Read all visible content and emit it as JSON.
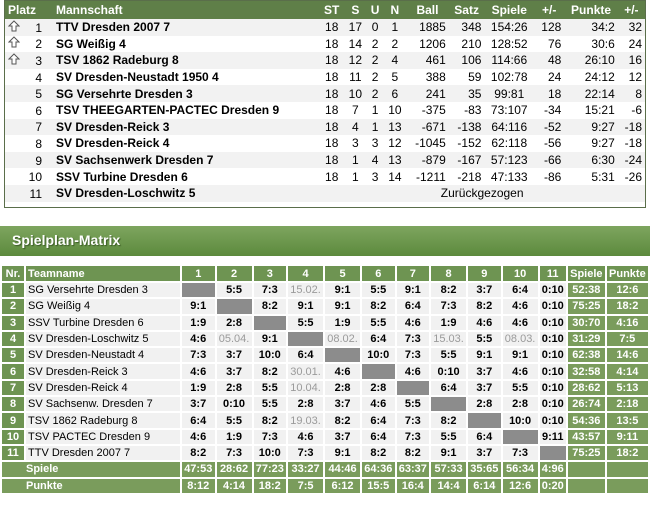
{
  "standings": {
    "headers": [
      "Platz",
      "Mannschaft",
      "ST",
      "S",
      "U",
      "N",
      "Ball",
      "Satz",
      "Spiele",
      "+/-",
      "Punkte",
      "+/-"
    ],
    "rows": [
      {
        "arrow": "up",
        "place": "1",
        "team": "TTV Dresden 2007 7",
        "st": "18",
        "s": "17",
        "u": "0",
        "n": "1",
        "ball": "1885",
        "satz": "348",
        "spiele": "154:26",
        "diff": "128",
        "punkte": "34:2",
        "pdiff": "32"
      },
      {
        "arrow": "up",
        "place": "2",
        "team": "SG Weißig 4",
        "st": "18",
        "s": "14",
        "u": "2",
        "n": "2",
        "ball": "1206",
        "satz": "210",
        "spiele": "128:52",
        "diff": "76",
        "punkte": "30:6",
        "pdiff": "24"
      },
      {
        "arrow": "up",
        "place": "3",
        "team": "TSV 1862 Radeburg 8",
        "st": "18",
        "s": "12",
        "u": "2",
        "n": "4",
        "ball": "461",
        "satz": "106",
        "spiele": "114:66",
        "diff": "48",
        "punkte": "26:10",
        "pdiff": "16"
      },
      {
        "arrow": "",
        "place": "4",
        "team": "SV Dresden-Neustadt 1950 4",
        "st": "18",
        "s": "11",
        "u": "2",
        "n": "5",
        "ball": "388",
        "satz": "59",
        "spiele": "102:78",
        "diff": "24",
        "punkte": "24:12",
        "pdiff": "12"
      },
      {
        "arrow": "",
        "place": "5",
        "team": "SG Versehrte Dresden 3",
        "st": "18",
        "s": "10",
        "u": "2",
        "n": "6",
        "ball": "241",
        "satz": "35",
        "spiele": "99:81",
        "diff": "18",
        "punkte": "22:14",
        "pdiff": "8"
      },
      {
        "arrow": "",
        "place": "6",
        "team": "TSV THEEGARTEN-PACTEC Dresden 9",
        "st": "18",
        "s": "7",
        "u": "1",
        "n": "10",
        "ball": "-375",
        "satz": "-83",
        "spiele": "73:107",
        "diff": "-34",
        "punkte": "15:21",
        "pdiff": "-6"
      },
      {
        "arrow": "",
        "place": "7",
        "team": "SV Dresden-Reick 3",
        "st": "18",
        "s": "4",
        "u": "1",
        "n": "13",
        "ball": "-671",
        "satz": "-138",
        "spiele": "64:116",
        "diff": "-52",
        "punkte": "9:27",
        "pdiff": "-18"
      },
      {
        "arrow": "",
        "place": "8",
        "team": "SV Dresden-Reick 4",
        "st": "18",
        "s": "3",
        "u": "3",
        "n": "12",
        "ball": "-1045",
        "satz": "-152",
        "spiele": "62:118",
        "diff": "-56",
        "punkte": "9:27",
        "pdiff": "-18"
      },
      {
        "arrow": "",
        "place": "9",
        "team": "SV Sachsenwerk Dresden 7",
        "st": "18",
        "s": "1",
        "u": "4",
        "n": "13",
        "ball": "-879",
        "satz": "-167",
        "spiele": "57:123",
        "diff": "-66",
        "punkte": "6:30",
        "pdiff": "-24"
      },
      {
        "arrow": "",
        "place": "10",
        "team": "SSV Turbine Dresden 6",
        "st": "18",
        "s": "1",
        "u": "3",
        "n": "14",
        "ball": "-1211",
        "satz": "-218",
        "spiele": "47:133",
        "diff": "-86",
        "punkte": "5:31",
        "pdiff": "-26"
      }
    ],
    "withdrawn": {
      "place": "11",
      "team": "SV Dresden-Loschwitz 5",
      "text": "Zurückgezogen"
    }
  },
  "matrix": {
    "title": "Spielplan-Matrix",
    "headers": {
      "nr": "Nr.",
      "team": "Teamname",
      "cols": [
        "1",
        "2",
        "3",
        "4",
        "5",
        "6",
        "7",
        "8",
        "9",
        "10",
        "11"
      ],
      "spiele": "Spiele",
      "punkte": "Punkte"
    },
    "rows": [
      {
        "nr": "1",
        "team": "SG Versehrte Dresden 3",
        "cells": [
          "",
          "5:5",
          "7:3",
          "15.02.",
          "9:1",
          "5:5",
          "9:1",
          "8:2",
          "3:7",
          "6:4",
          "0:10"
        ],
        "spiele": "52:38",
        "punkte": "12:6"
      },
      {
        "nr": "2",
        "team": "SG Weißig 4",
        "cells": [
          "9:1",
          "",
          "8:2",
          "9:1",
          "9:1",
          "8:2",
          "6:4",
          "7:3",
          "8:2",
          "4:6",
          "0:10"
        ],
        "spiele": "75:25",
        "punkte": "18:2"
      },
      {
        "nr": "3",
        "team": "SSV Turbine Dresden 6",
        "cells": [
          "1:9",
          "2:8",
          "",
          "5:5",
          "1:9",
          "5:5",
          "4:6",
          "1:9",
          "4:6",
          "4:6",
          "0:10"
        ],
        "spiele": "30:70",
        "punkte": "4:16"
      },
      {
        "nr": "4",
        "team": "SV Dresden-Loschwitz 5",
        "cells": [
          "4:6",
          "05.04.",
          "9:1",
          "",
          "08.02.",
          "6:4",
          "7:3",
          "15.03.",
          "5:5",
          "08.03.",
          "0:10"
        ],
        "spiele": "31:29",
        "punkte": "7:5"
      },
      {
        "nr": "5",
        "team": "SV Dresden-Neustadt 4",
        "cells": [
          "7:3",
          "3:7",
          "10:0",
          "6:4",
          "",
          "10:0",
          "7:3",
          "5:5",
          "9:1",
          "9:1",
          "0:10"
        ],
        "spiele": "62:38",
        "punkte": "14:6"
      },
      {
        "nr": "6",
        "team": "SV Dresden-Reick 3",
        "cells": [
          "4:6",
          "3:7",
          "8:2",
          "30.01.",
          "4:6",
          "",
          "4:6",
          "0:10",
          "3:7",
          "4:6",
          "0:10"
        ],
        "spiele": "32:58",
        "punkte": "4:14"
      },
      {
        "nr": "7",
        "team": "SV Dresden-Reick 4",
        "cells": [
          "1:9",
          "2:8",
          "5:5",
          "10.04.",
          "2:8",
          "2:8",
          "",
          "6:4",
          "3:7",
          "5:5",
          "0:10"
        ],
        "spiele": "28:62",
        "punkte": "5:13"
      },
      {
        "nr": "8",
        "team": "SV Sachsenw. Dresden 7",
        "cells": [
          "3:7",
          "0:10",
          "5:5",
          "2:8",
          "3:7",
          "4:6",
          "5:5",
          "",
          "2:8",
          "2:8",
          "0:10"
        ],
        "spiele": "26:74",
        "punkte": "2:18"
      },
      {
        "nr": "9",
        "team": "TSV 1862 Radeburg 8",
        "cells": [
          "6:4",
          "5:5",
          "8:2",
          "19.03.",
          "8:2",
          "6:4",
          "7:3",
          "8:2",
          "",
          "10:0",
          "0:10"
        ],
        "spiele": "54:36",
        "punkte": "13:5"
      },
      {
        "nr": "10",
        "team": "TSV PACTEC Dresden 9",
        "cells": [
          "4:6",
          "1:9",
          "7:3",
          "4:6",
          "3:7",
          "6:4",
          "7:3",
          "5:5",
          "6:4",
          "",
          "9:11"
        ],
        "spiele": "43:57",
        "punkte": "9:11"
      },
      {
        "nr": "11",
        "team": "TTV Dresden 2007 7",
        "cells": [
          "8:2",
          "7:3",
          "10:0",
          "7:3",
          "9:1",
          "8:2",
          "8:2",
          "9:1",
          "3:7",
          "7:3",
          ""
        ],
        "spiele": "75:25",
        "punkte": "18:2"
      }
    ],
    "footer": {
      "spiele_label": "Spiele",
      "spiele": [
        "47:53",
        "28:62",
        "77:23",
        "33:27",
        "44:46",
        "64:36",
        "63:37",
        "57:33",
        "35:65",
        "56:34",
        "4:96"
      ],
      "punkte_label": "Punkte",
      "punkte": [
        "8:12",
        "4:14",
        "18:2",
        "7:5",
        "6:12",
        "15:5",
        "16:4",
        "14:4",
        "6:14",
        "12:6",
        "0:20"
      ]
    }
  },
  "colors": {
    "header_green": "#5f7f48",
    "diagonal_gray": "#8c8c8c",
    "pending_gray": "#9a9a9a"
  }
}
